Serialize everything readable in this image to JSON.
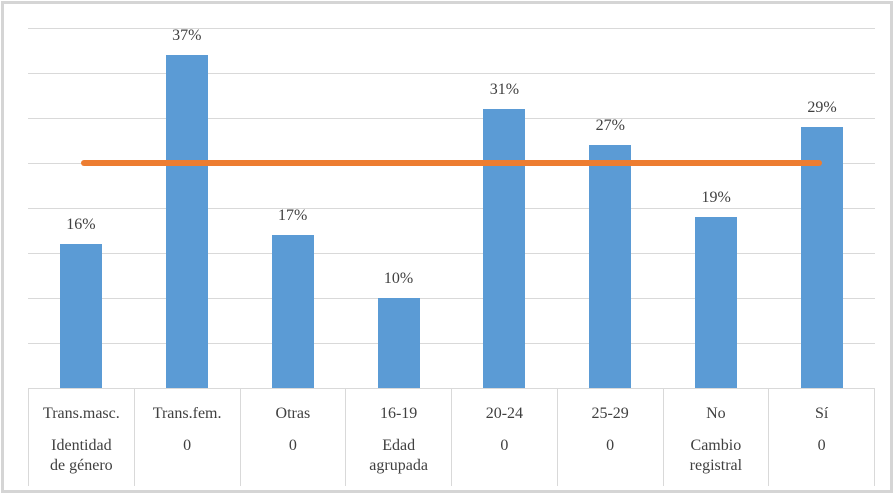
{
  "chart_data": {
    "type": "bar",
    "title": "",
    "legend": "none",
    "y_axis_labels_visible": false,
    "categories": [
      "Trans.masc.",
      "Trans.fem.",
      "Otras",
      "16-19",
      "20-24",
      "25-29",
      "No",
      "Sí"
    ],
    "category_group_labels": [
      "Identidad\nde género",
      "0",
      "0",
      "Edad\nagrupada",
      "0",
      "0",
      "Cambio\nregistral",
      "0"
    ],
    "values": [
      16,
      37,
      17,
      10,
      31,
      27,
      19,
      29
    ],
    "data_labels": [
      "16%",
      "37%",
      "17%",
      "10%",
      "31%",
      "27%",
      "19%",
      "29%"
    ],
    "unit": "%",
    "ylim": [
      0,
      40
    ],
    "gridline_interval": 5,
    "reference_line": {
      "value": 25,
      "from_category_index": 0,
      "to_category_index": 7,
      "color": "#ED7D31"
    },
    "colors": {
      "bar": "#5B9BD5",
      "reference_line": "#ED7D31",
      "gridline": "#D9D9D9",
      "axis_border": "#D9D9D9",
      "label_text": "#404040",
      "frame_border": "#D5D5D5",
      "background": "#FFFFFF"
    }
  }
}
